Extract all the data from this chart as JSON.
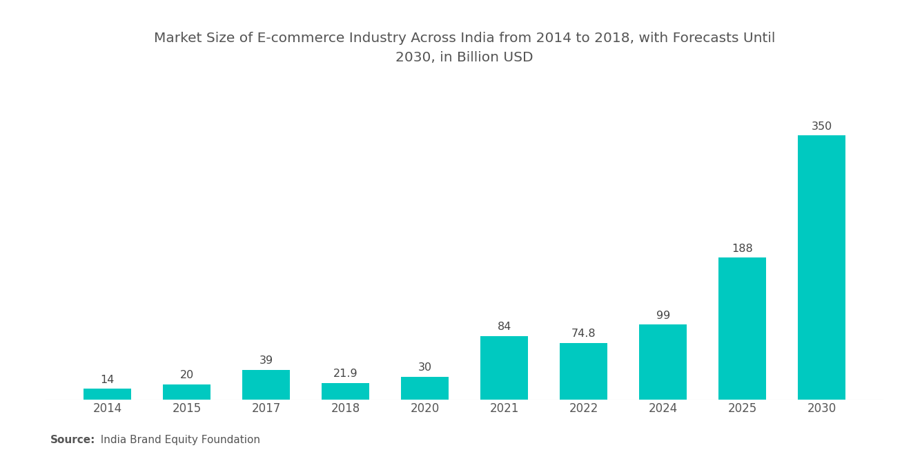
{
  "title_line1": "Market Size of E-commerce Industry Across India from 2014 to 2018, with Forecasts Until",
  "title_line2": "2030, in Billion USD",
  "categories": [
    "2014",
    "2015",
    "2017",
    "2018",
    "2020",
    "2021",
    "2022",
    "2024",
    "2025",
    "2030"
  ],
  "values": [
    14,
    20,
    39,
    21.9,
    30,
    84,
    74.8,
    99,
    188,
    350
  ],
  "bar_color": "#00C9C0",
  "background_color": "#ffffff",
  "title_fontsize": 14.5,
  "label_fontsize": 11.5,
  "tick_fontsize": 12,
  "source_bold": "Source:",
  "source_normal": "  India Brand Equity Foundation",
  "source_fontsize": 11,
  "ylim": [
    0,
    420
  ],
  "bar_width": 0.6,
  "title_color": "#555555",
  "tick_color": "#555555",
  "label_color": "#444444"
}
